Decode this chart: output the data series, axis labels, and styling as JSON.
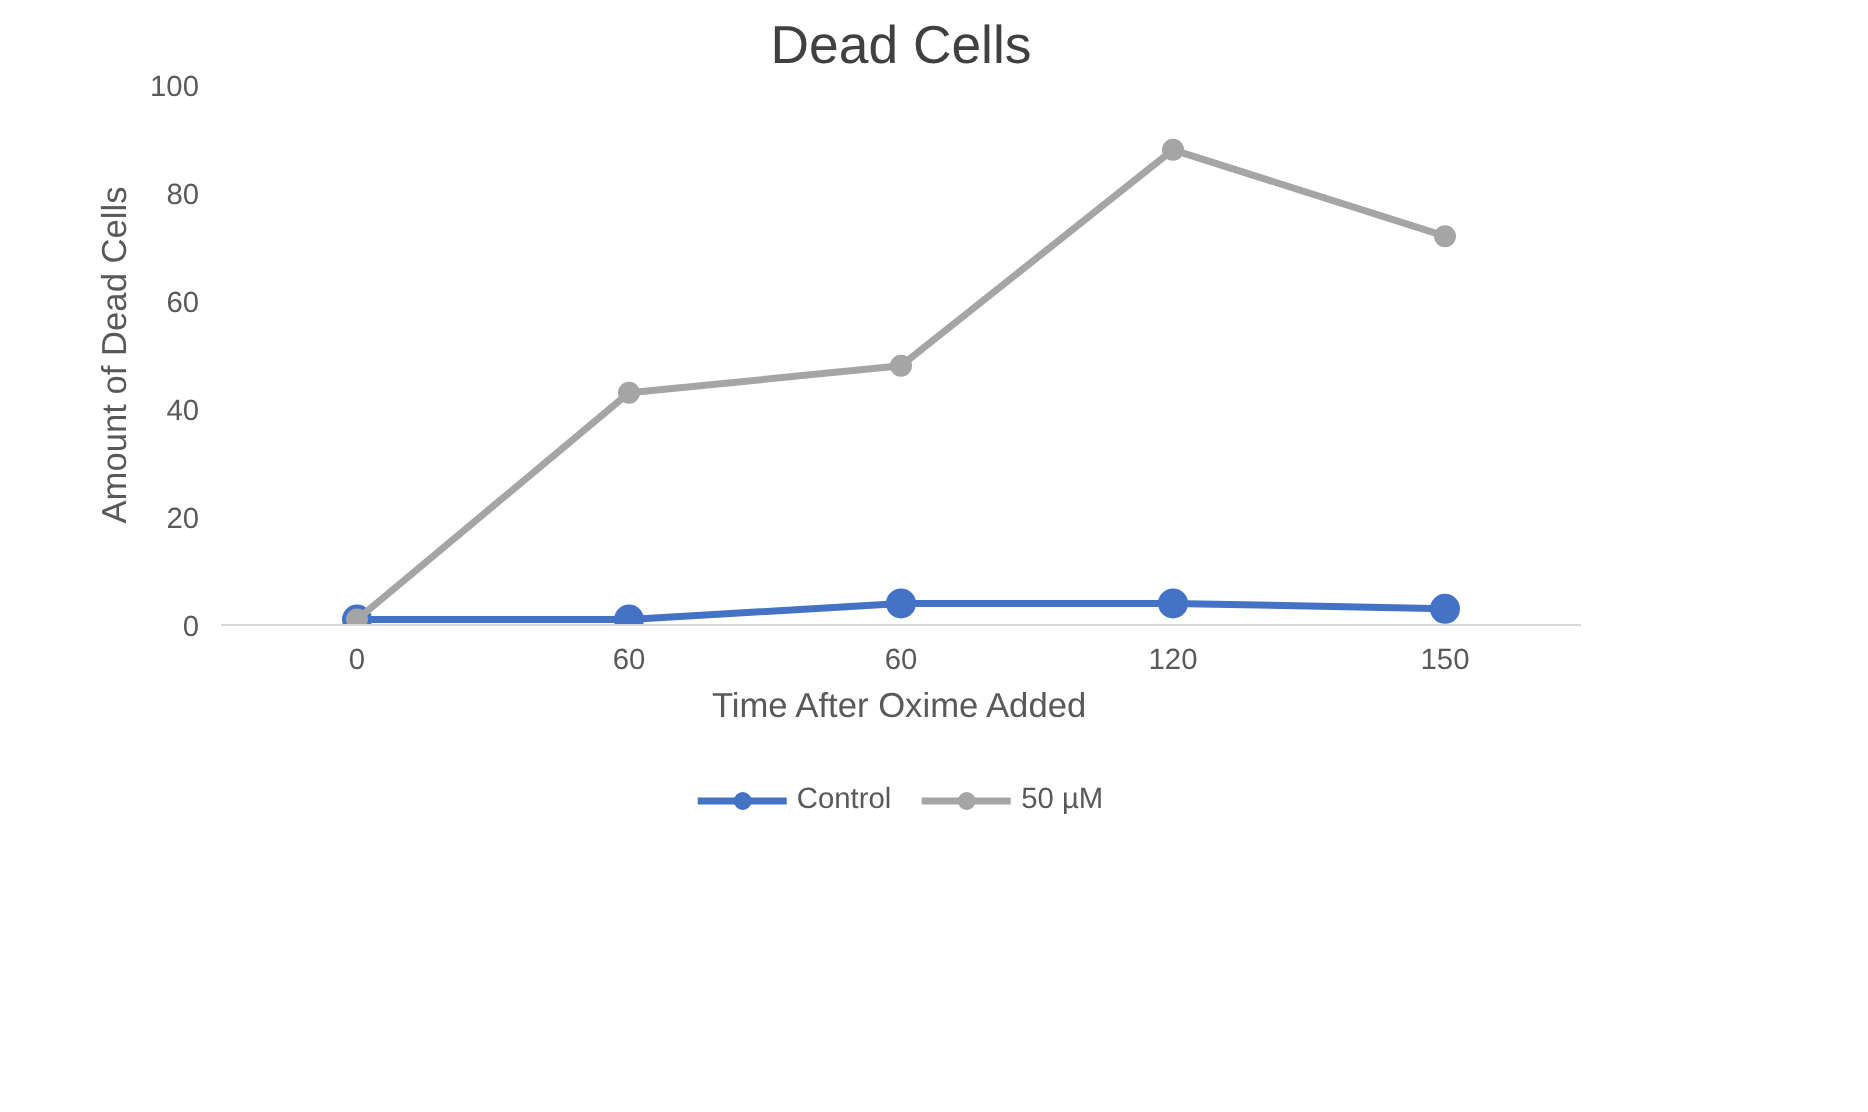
{
  "chart_data": {
    "type": "line",
    "title": "Dead Cells",
    "xlabel": "Time After Oxime Added",
    "ylabel": "Amount of Dead Cells",
    "categories": [
      "0",
      "60",
      "60",
      "120",
      "150"
    ],
    "series": [
      {
        "name": "Control",
        "color": "#4472c4",
        "values": [
          1,
          1,
          4,
          4,
          3
        ]
      },
      {
        "name": "50 µM",
        "color": "#a5a5a5",
        "values": [
          1,
          43,
          48,
          88,
          72
        ]
      }
    ],
    "ylim": [
      0,
      100
    ],
    "yticks": [
      0,
      20,
      40,
      60,
      80,
      100
    ],
    "grid": false,
    "legend": "bottom",
    "marker": "circle",
    "line_style": "solid"
  }
}
